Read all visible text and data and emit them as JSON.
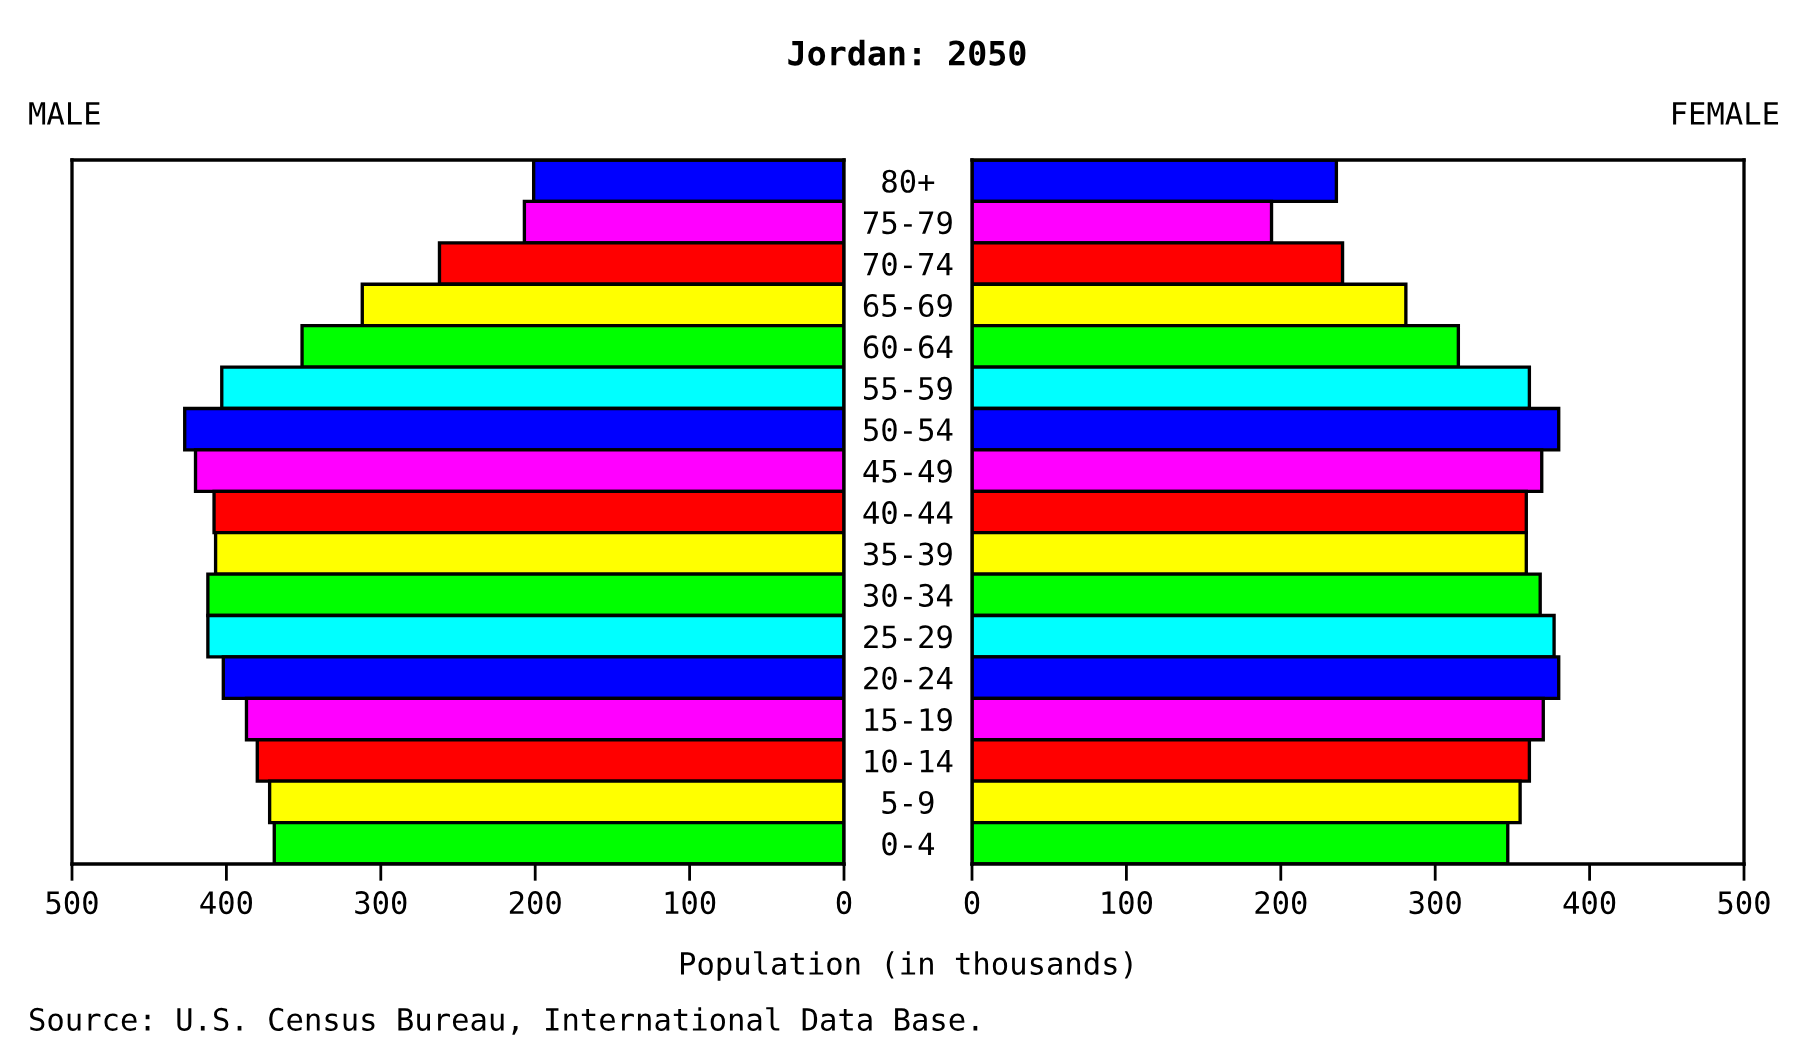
{
  "chart_data": [
    {
      "type": "bar",
      "orientation": "horizontal",
      "title": "Jordan: 2050",
      "subtitle": "MALE",
      "xlabel": "Population (in thousands)",
      "categories": [
        "80+",
        "75-79",
        "70-74",
        "65-69",
        "60-64",
        "55-59",
        "50-54",
        "45-49",
        "40-44",
        "35-39",
        "30-34",
        "25-29",
        "20-24",
        "15-19",
        "10-14",
        "5-9",
        "0-4"
      ],
      "values": [
        201,
        207,
        262,
        312,
        351,
        403,
        427,
        420,
        408,
        407,
        412,
        412,
        402,
        387,
        380,
        372,
        369
      ],
      "colors": [
        "#0000ff",
        "#ff00ff",
        "#ff0000",
        "#ffff00",
        "#00ff00",
        "#00ffff",
        "#0000ff",
        "#ff00ff",
        "#ff0000",
        "#ffff00",
        "#00ff00",
        "#00ffff",
        "#0000ff",
        "#ff00ff",
        "#ff0000",
        "#ffff00",
        "#00ff00"
      ],
      "xlim": [
        500,
        0
      ],
      "xticks": [
        500,
        400,
        300,
        200,
        100,
        0
      ],
      "grid": false,
      "legend": false,
      "annotations": [
        "Source: U.S. Census Bureau, International Data Base."
      ]
    },
    {
      "type": "bar",
      "orientation": "horizontal",
      "subtitle": "FEMALE",
      "categories": [
        null,
        null,
        null,
        null,
        null,
        null,
        null,
        null,
        null,
        null,
        null,
        null,
        null,
        null,
        null,
        null,
        null
      ],
      "values": [
        236,
        194,
        240,
        281,
        315,
        361,
        380,
        369,
        359,
        359,
        368,
        377,
        380,
        370,
        361,
        355,
        347
      ],
      "colors": [
        "#0000ff",
        "#ff00ff",
        "#ff0000",
        "#ffff00",
        "#00ff00",
        "#00ffff",
        "#0000ff",
        "#ff00ff",
        "#ff0000",
        "#ffff00",
        "#00ff00",
        "#00ffff",
        "#0000ff",
        "#ff00ff",
        "#ff0000",
        "#ffff00",
        "#00ff00"
      ],
      "xlim": [
        0,
        500
      ],
      "xticks": [
        0,
        100,
        200,
        300,
        400,
        500
      ],
      "grid": false,
      "legend": false,
      "tick_labels": "x"
    }
  ]
}
